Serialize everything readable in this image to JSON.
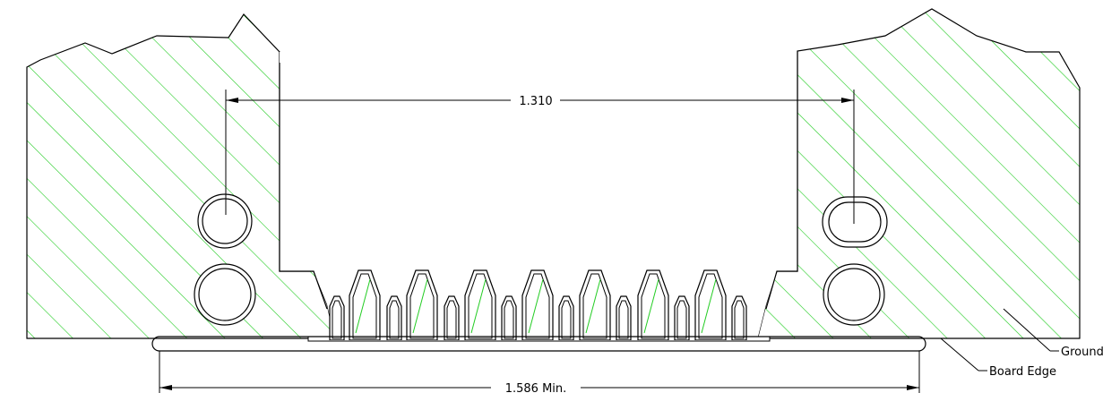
{
  "dimensions": {
    "top_span": "1.310",
    "bottom_span": "1.586 Min."
  },
  "callouts": {
    "ground": "Ground",
    "board_edge": "Board Edge"
  },
  "colors": {
    "hatch": "#22cc22",
    "line": "#000000"
  }
}
